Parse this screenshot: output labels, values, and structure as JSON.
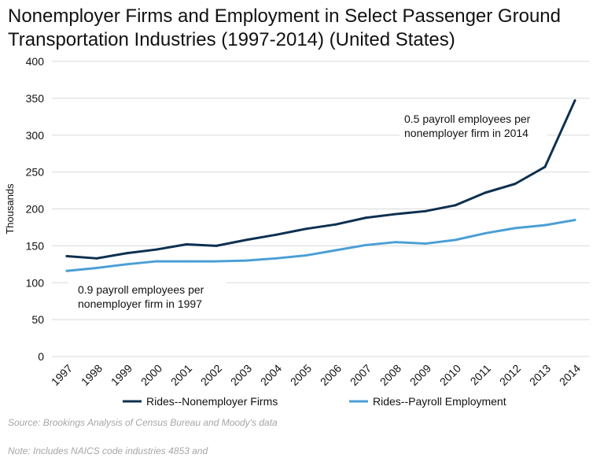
{
  "chart_data": {
    "type": "line",
    "title": "Nonemployer Firms and Employment in Select Passenger Ground\nTransportation Industries (1997-2014) (United States)",
    "xlabel": "",
    "ylabel": "Thousands",
    "ylim": [
      0,
      400
    ],
    "yticks": [
      0,
      50,
      100,
      150,
      200,
      250,
      300,
      350,
      400
    ],
    "categories": [
      "1997",
      "1998",
      "1999",
      "2000",
      "2001",
      "2002",
      "2003",
      "2004",
      "2005",
      "2006",
      "2007",
      "2008",
      "2009",
      "2010",
      "2011",
      "2012",
      "2013",
      "2014"
    ],
    "series": [
      {
        "name": "Rides--Nonemployer Firms",
        "color": "#0d3050",
        "values": [
          136,
          133,
          140,
          145,
          152,
          150,
          158,
          165,
          173,
          179,
          188,
          193,
          197,
          205,
          222,
          234,
          257,
          347
        ]
      },
      {
        "name": "Rides--Payroll Employment",
        "color": "#4b9fd5",
        "values": [
          116,
          120,
          125,
          129,
          129,
          129,
          130,
          133,
          137,
          144,
          151,
          155,
          153,
          158,
          167,
          174,
          178,
          185
        ]
      }
    ],
    "grid": true,
    "legend_position": "bottom",
    "annotations": [
      {
        "id": "ann2014",
        "text": "0.5 payroll employees per\nnonemployer firm in 2014"
      },
      {
        "id": "ann1997",
        "text": "0.9 payroll employees per\nnonemployer firm in 1997"
      }
    ]
  },
  "source_text": "Source: Brookings Analysis of Census Bureau and Moody's data",
  "note_text": "Note: Includes NAICS code industries 4853 and"
}
